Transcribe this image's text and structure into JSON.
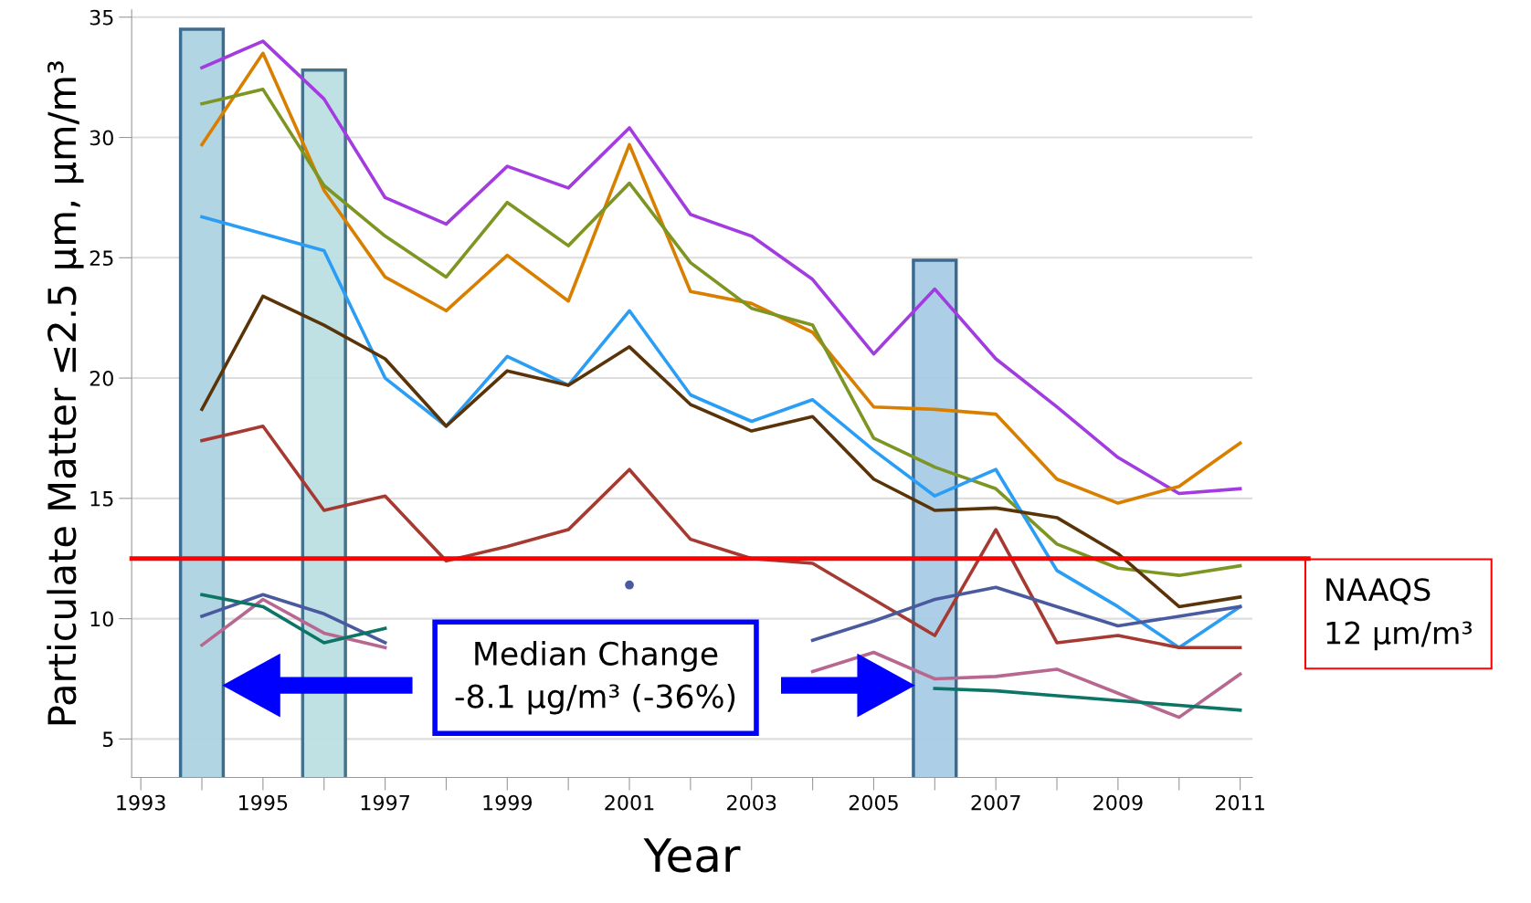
{
  "chart_data": {
    "type": "line",
    "xlabel": "Year",
    "ylabel": "Particulate Matter ≤2.5 µm, µm/m³",
    "x": [
      1994,
      1995,
      1996,
      1997,
      1998,
      1999,
      2000,
      2001,
      2002,
      2003,
      2004,
      2005,
      2006,
      2007,
      2008,
      2009,
      2010,
      2011
    ],
    "series": [
      {
        "type": "bar",
        "x": [
          1994,
          1996,
          2006
        ],
        "values": [
          34.5,
          32.8,
          24.9
        ],
        "colors": [
          "#aed3e3",
          "#bde0e3",
          "#a9cce6"
        ]
      },
      {
        "color": "#a23be0",
        "values": [
          32.9,
          34.0,
          31.6,
          27.5,
          26.4,
          28.8,
          27.9,
          30.4,
          26.8,
          25.9,
          24.1,
          21.0,
          23.7,
          20.8,
          18.8,
          16.7,
          15.2,
          15.4
        ]
      },
      {
        "color": "#d97f00",
        "values": [
          29.7,
          33.5,
          27.8,
          24.2,
          22.8,
          25.1,
          23.2,
          29.7,
          23.6,
          23.1,
          21.9,
          18.8,
          18.7,
          18.5,
          15.8,
          14.8,
          15.5,
          17.3
        ]
      },
      {
        "color": "#7d9623",
        "values": [
          31.4,
          32.0,
          28.0,
          25.9,
          24.2,
          27.3,
          25.5,
          28.1,
          24.8,
          22.9,
          22.2,
          17.5,
          16.3,
          15.4,
          13.1,
          12.1,
          11.8,
          12.2
        ]
      },
      {
        "color": "#2a9df4",
        "values": [
          26.7,
          26.0,
          25.3,
          20.0,
          18.0,
          20.9,
          19.7,
          22.8,
          19.3,
          18.2,
          19.1,
          17.0,
          15.1,
          16.2,
          12.0,
          10.5,
          8.8,
          10.5
        ]
      },
      {
        "color": "#5a3408",
        "values": [
          18.7,
          23.4,
          22.2,
          20.8,
          18.0,
          20.3,
          19.7,
          21.3,
          18.9,
          17.8,
          18.4,
          15.8,
          14.5,
          14.6,
          14.2,
          12.7,
          10.5,
          10.9
        ]
      },
      {
        "color": "#a63a32",
        "values": [
          17.4,
          18.0,
          14.5,
          15.1,
          12.4,
          13.0,
          13.7,
          16.2,
          13.3,
          12.5,
          12.3,
          10.8,
          9.3,
          13.7,
          9.0,
          9.3,
          8.8,
          8.8
        ]
      },
      {
        "color": "#4a5a9e",
        "values": [
          10.1,
          11.0,
          10.2,
          9.0,
          null,
          null,
          null,
          11.4,
          null,
          null,
          9.1,
          9.9,
          10.8,
          11.3,
          10.5,
          9.7,
          10.1,
          10.5
        ]
      },
      {
        "color": "#b86890",
        "values": [
          8.9,
          10.8,
          9.4,
          8.8,
          null,
          null,
          null,
          null,
          null,
          null,
          7.8,
          8.6,
          7.5,
          7.6,
          7.9,
          6.9,
          5.9,
          7.7
        ]
      },
      {
        "color": "#0d7566",
        "values": [
          11.0,
          10.5,
          9.0,
          9.6,
          null,
          null,
          null,
          null,
          null,
          null,
          null,
          null,
          7.1,
          7.0,
          6.8,
          6.6,
          6.4,
          6.2
        ]
      }
    ],
    "xlim": [
      1992.85,
      2011.2
    ],
    "xticks": [
      1993,
      {
        "value": 1994,
        "label": null
      },
      1995,
      {
        "value": 1996,
        "label": null
      },
      1997,
      {
        "value": 1998,
        "label": null
      },
      1999,
      {
        "value": 2000,
        "label": null
      },
      2001,
      {
        "value": 2002,
        "label": null
      },
      2003,
      {
        "value": 2004,
        "label": null
      },
      2005,
      {
        "value": 2006,
        "label": null
      },
      2007,
      {
        "value": 2008,
        "label": null
      },
      2009,
      {
        "value": 2010,
        "label": null
      },
      2011
    ],
    "ylim": [
      3.4,
      35.3
    ],
    "yticks": [
      5,
      10,
      15,
      20,
      25,
      30,
      35
    ],
    "grid": "y",
    "ref_lines": [
      {
        "axis": "y",
        "value": 12.5,
        "label": "NAAQS\n12 µm/m³",
        "color": "#ff0000"
      }
    ],
    "annotations": [
      "Median Change\n-8.1 µg/m³ (-36%)"
    ]
  }
}
